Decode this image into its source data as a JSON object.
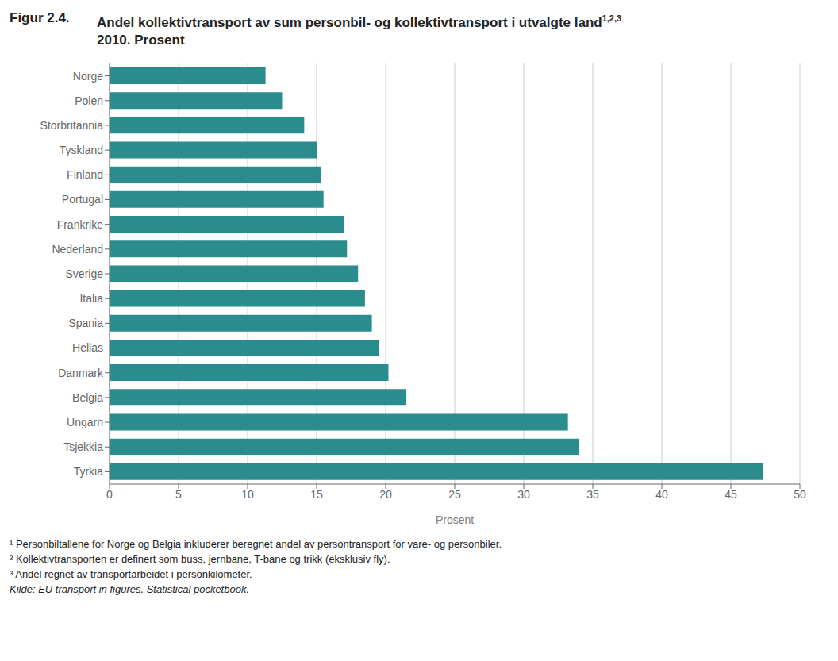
{
  "chart_data": {
    "type": "bar",
    "orientation": "horizontal",
    "title_label": "Figur 2.4.",
    "title": "Andel kollektivtransport av sum personbil- og kollektivtransport i utvalgte land",
    "title_super": "1,2,3",
    "subtitle": "2010. Prosent",
    "categories": [
      "Norge",
      "Polen",
      "Storbritannia",
      "Tyskland",
      "Finland",
      "Portugal",
      "Frankrike",
      "Nederland",
      "Sverige",
      "Italia",
      "Spania",
      "Hellas",
      "Danmark",
      "Belgia",
      "Ungarn",
      "Tsjekkia",
      "Tyrkia"
    ],
    "values": [
      11.3,
      12.5,
      14.1,
      15.0,
      15.3,
      15.5,
      17.0,
      17.2,
      18.0,
      18.5,
      19.0,
      19.5,
      20.2,
      21.5,
      33.2,
      34.0,
      47.3
    ],
    "color": "#2a8c8c",
    "xlabel": "Prosent",
    "xlim": [
      0,
      50
    ],
    "xticks": [
      0,
      5,
      10,
      15,
      20,
      25,
      30,
      35,
      40,
      45,
      50
    ],
    "grid": true,
    "annotations": [
      "¹ Personbiltallene for Norge og Belgia inkluderer beregnet andel av persontransport for vare- og personbiler.",
      "² Kollektivtransporten er definert som buss, jernbane, T-bane og trikk (eksklusiv fly).",
      "³ Andel regnet av transportarbeidet i personkilometer.",
      "Kilde: EU transport in figures. Statistical pocketbook."
    ]
  }
}
